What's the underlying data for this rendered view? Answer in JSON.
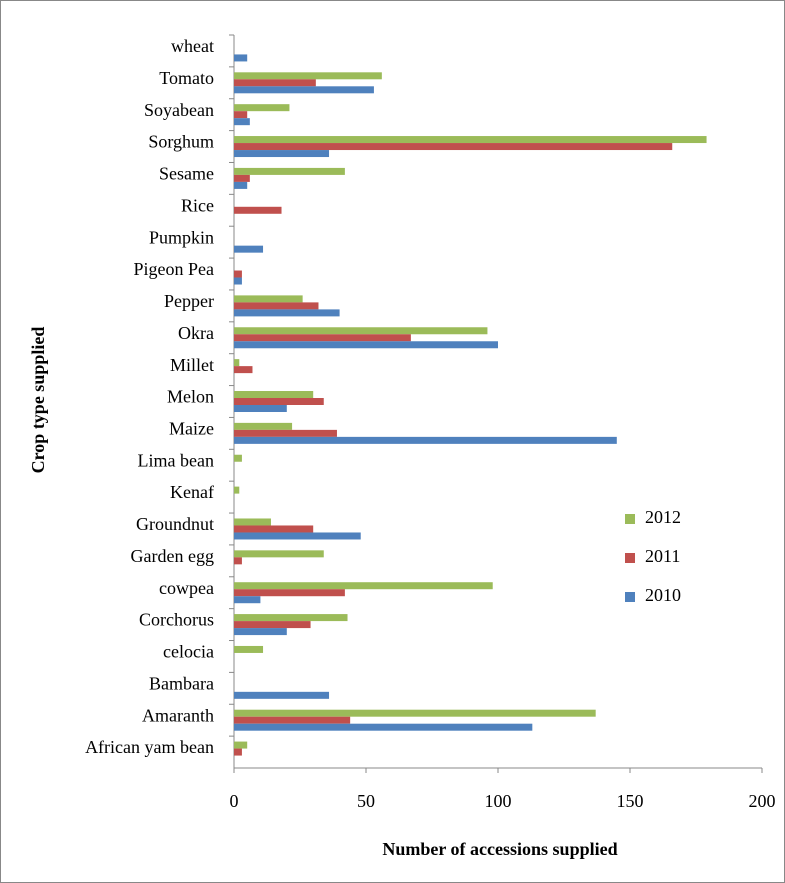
{
  "chart_data": {
    "type": "bar",
    "orientation": "horizontal",
    "x_label": "Number of accessions supplied",
    "y_label": "Crop  type supplied",
    "categories": [
      "wheat",
      "Tomato",
      "Soyabean",
      "Sorghum",
      "Sesame",
      "Rice",
      "Pumpkin",
      "Pigeon Pea",
      "Pepper",
      "Okra",
      "Millet",
      "Melon",
      "Maize",
      "Lima bean",
      "Kenaf",
      "Groundnut",
      "Garden egg",
      "cowpea",
      "Corchorus",
      "celocia",
      "Bambara",
      "Amaranth",
      "African yam bean"
    ],
    "series": [
      {
        "name": "2012",
        "color": "#9bbb59",
        "values": [
          0,
          56,
          21,
          179,
          42,
          0,
          0,
          0,
          26,
          96,
          2,
          30,
          22,
          3,
          2,
          14,
          34,
          98,
          43,
          11,
          0,
          137,
          5
        ]
      },
      {
        "name": "2011",
        "color": "#c0504d",
        "values": [
          0,
          31,
          5,
          166,
          6,
          18,
          0,
          3,
          32,
          67,
          7,
          34,
          39,
          0,
          0,
          30,
          3,
          42,
          29,
          0,
          0,
          44,
          3
        ]
      },
      {
        "name": "2010",
        "color": "#4f81bd",
        "values": [
          5,
          53,
          6,
          36,
          5,
          0,
          11,
          3,
          40,
          100,
          0,
          20,
          145,
          0,
          0,
          48,
          0,
          10,
          20,
          0,
          36,
          113,
          0
        ]
      }
    ],
    "xlim": [
      0,
      200
    ],
    "xticks": [
      0,
      50,
      100,
      150,
      200
    ],
    "legend": "right"
  }
}
